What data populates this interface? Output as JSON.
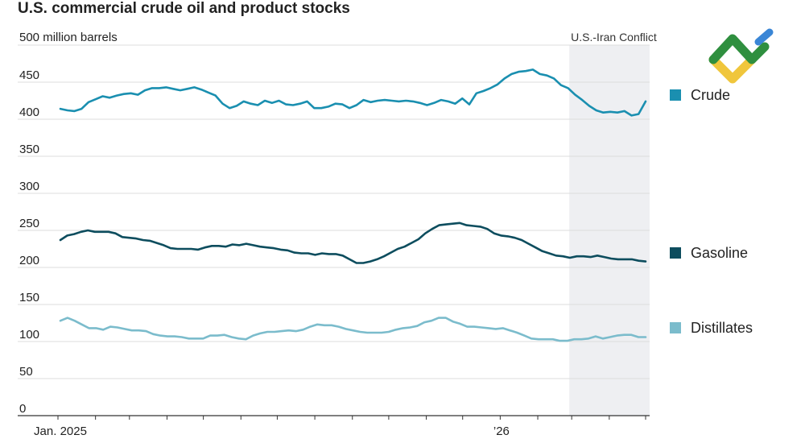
{
  "chart_data": {
    "type": "line",
    "title": "U.S. commercial crude oil and product stocks",
    "ylabel": "million barrels",
    "ylim": [
      0,
      500
    ],
    "y_ticks": [
      {
        "value": 500,
        "label": "500"
      },
      {
        "value": 450,
        "label": "450"
      },
      {
        "value": 400,
        "label": "400"
      },
      {
        "value": 350,
        "label": "350"
      },
      {
        "value": 300,
        "label": "300"
      },
      {
        "value": 250,
        "label": "250"
      },
      {
        "value": 200,
        "label": "200"
      },
      {
        "value": 150,
        "label": "150"
      },
      {
        "value": 100,
        "label": "100"
      },
      {
        "value": 50,
        "label": "50"
      },
      {
        "value": 0,
        "label": "0"
      }
    ],
    "x_range": [
      "2025-01-03",
      "2026-05-01"
    ],
    "x_tick_labels": [
      {
        "date": "2025-01-03",
        "label": "Jan. 2025"
      },
      {
        "date": "2026-01-02",
        "label": "’26"
      }
    ],
    "grid": "horizontal",
    "legend_placement": "right",
    "shaded_period": {
      "label": "U.S.-Iran Conflict",
      "start": "2026-02-27",
      "end": "2026-05-01",
      "color": "#eeeff2"
    },
    "series": [
      {
        "name": "Crude",
        "color": "#1a8fb0",
        "values": [
          414,
          412,
          411,
          414,
          423,
          427,
          431,
          429,
          432,
          434,
          435,
          433,
          439,
          442,
          442,
          443,
          441,
          439,
          441,
          443,
          440,
          436,
          432,
          421,
          415,
          418,
          424,
          421,
          419,
          425,
          422,
          425,
          420,
          419,
          421,
          424,
          415,
          415,
          417,
          421,
          420,
          415,
          419,
          426,
          423,
          425,
          426,
          425,
          424,
          425,
          424,
          422,
          419,
          422,
          426,
          424,
          421,
          428,
          420,
          435,
          438,
          442,
          447,
          455,
          461,
          464,
          465,
          467,
          461,
          459,
          455,
          446,
          442,
          433,
          426,
          418,
          412,
          409,
          410,
          409,
          411,
          405,
          407,
          424
        ]
      },
      {
        "name": "Gasoline",
        "color": "#0d4d5e",
        "values": [
          237,
          243,
          245,
          248,
          250,
          248,
          248,
          248,
          246,
          241,
          240,
          239,
          237,
          236,
          233,
          230,
          226,
          225,
          225,
          225,
          224,
          227,
          229,
          229,
          228,
          231,
          230,
          232,
          230,
          228,
          227,
          226,
          224,
          223,
          220,
          219,
          219,
          217,
          219,
          218,
          218,
          216,
          211,
          206,
          206,
          208,
          211,
          215,
          220,
          225,
          228,
          233,
          238,
          246,
          252,
          257,
          258,
          259,
          260,
          257,
          256,
          255,
          252,
          246,
          243,
          242,
          240,
          237,
          232,
          227,
          222,
          219,
          216,
          215,
          213,
          215,
          215,
          214,
          216,
          214,
          212,
          211,
          211,
          211,
          209,
          208
        ]
      },
      {
        "name": "Distillates",
        "color": "#7bbccc",
        "values": [
          128,
          132,
          128,
          123,
          118,
          118,
          116,
          120,
          119,
          117,
          115,
          115,
          114,
          110,
          108,
          107,
          107,
          106,
          104,
          104,
          104,
          108,
          108,
          109,
          106,
          104,
          103,
          108,
          111,
          113,
          113,
          114,
          115,
          114,
          116,
          120,
          123,
          122,
          122,
          120,
          117,
          115,
          113,
          112,
          112,
          112,
          113,
          116,
          118,
          119,
          121,
          126,
          128,
          132,
          132,
          127,
          124,
          120,
          120,
          119,
          118,
          117,
          118,
          115,
          112,
          108,
          104,
          103,
          103,
          103,
          101,
          101,
          103,
          103,
          104,
          107,
          104,
          106,
          108,
          109,
          109,
          106,
          106
        ]
      }
    ]
  }
}
